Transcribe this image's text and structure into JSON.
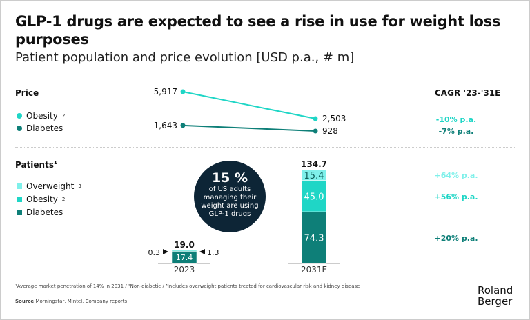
{
  "title": "GLP-1 drugs are expected to see a rise in use for weight loss purposes",
  "subtitle": "Patient population and price evolution [USD p.a., # m]",
  "colors": {
    "overweight": "#7ff0ea",
    "obesity": "#1fd6c6",
    "diabetes": "#0e7f78",
    "circle": "#0d2536"
  },
  "price": {
    "label": "Price",
    "legend": [
      {
        "name": "Obesity",
        "sup": "2"
      },
      {
        "name": "Diabetes",
        "sup": ""
      }
    ]
  },
  "patients": {
    "label": "Patients",
    "sup": "1",
    "legend": [
      {
        "name": "Overweight",
        "sup": "3"
      },
      {
        "name": "Obesity",
        "sup": "2"
      },
      {
        "name": "Diabetes",
        "sup": ""
      }
    ]
  },
  "cagr": {
    "header": "CAGR '23-'31E",
    "price": [
      "-10% p.a.",
      "-7% p.a."
    ],
    "patients": [
      "+64% p.a.",
      "+56% p.a.",
      "+20% p.a."
    ]
  },
  "callout": {
    "value": "15 %",
    "text": [
      "of US adults",
      "managing their",
      "weight are using",
      "GLP-1 drugs"
    ]
  },
  "chart_data": [
    {
      "type": "line",
      "x": [
        "2023",
        "2031E"
      ],
      "series": [
        {
          "name": "Obesity",
          "values": [
            5917,
            2503
          ]
        },
        {
          "name": "Diabetes",
          "values": [
            1643,
            928
          ]
        }
      ],
      "value_labels": [
        [
          "5,917",
          "2,503"
        ],
        [
          "1,643",
          "928"
        ]
      ]
    },
    {
      "type": "bar",
      "stacked": true,
      "categories": [
        "2023",
        "2031E"
      ],
      "series": [
        {
          "name": "Diabetes",
          "values": [
            17.4,
            74.3
          ]
        },
        {
          "name": "Obesity",
          "values": [
            1.3,
            45.0
          ]
        },
        {
          "name": "Overweight",
          "values": [
            0.3,
            15.4
          ]
        }
      ],
      "totals": [
        "19.0",
        "134.7"
      ],
      "value_labels": [
        [
          "17.4",
          "74.3"
        ],
        [
          "1.3",
          "45.0"
        ],
        [
          "0.3",
          "15.4"
        ]
      ]
    }
  ],
  "footnote": "¹Average market penetration of 14% in 2031 / ²Non-diabetic / ³Includes overweight patients treated for cardiovascular risk and kidney disease",
  "source_label": "Source",
  "source": "Morningstar, Mintel, Company reports",
  "logo": "Roland Berger"
}
